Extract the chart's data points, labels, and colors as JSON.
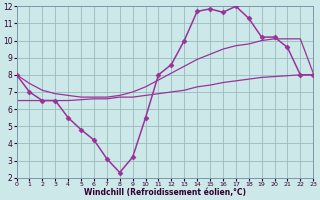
{
  "background_color": "#cce8e8",
  "grid_color": "#99bbbb",
  "line_color": "#993399",
  "xlim": [
    0,
    23
  ],
  "ylim": [
    2,
    12
  ],
  "xticks": [
    0,
    1,
    2,
    3,
    4,
    5,
    6,
    7,
    8,
    9,
    10,
    11,
    12,
    13,
    14,
    15,
    16,
    17,
    18,
    19,
    20,
    21,
    22,
    23
  ],
  "yticks": [
    2,
    3,
    4,
    5,
    6,
    7,
    8,
    9,
    10,
    11,
    12
  ],
  "xlabel": "Windchill (Refroidissement éolien,°C)",
  "series_jagged_x": [
    0,
    1,
    2,
    3,
    4,
    5,
    6,
    7,
    8,
    9,
    10,
    11,
    12,
    13,
    14,
    15,
    16,
    17,
    18,
    19,
    20,
    21,
    22,
    23
  ],
  "series_jagged_y": [
    8.0,
    7.0,
    6.5,
    6.5,
    5.5,
    4.8,
    4.2,
    3.1,
    2.3,
    3.2,
    5.5,
    8.0,
    8.6,
    10.0,
    11.7,
    11.85,
    11.65,
    12.0,
    11.3,
    10.2,
    10.2,
    9.6,
    8.0,
    8.0
  ],
  "series_upper_x": [
    0,
    1,
    2,
    3,
    4,
    5,
    6,
    7,
    8,
    9,
    10,
    11,
    12,
    13,
    14,
    15,
    16,
    17,
    18,
    19,
    20,
    21,
    22,
    23
  ],
  "series_upper_y": [
    8.0,
    7.5,
    7.1,
    6.9,
    6.8,
    6.7,
    6.7,
    6.7,
    6.8,
    7.0,
    7.3,
    7.7,
    8.1,
    8.5,
    8.9,
    9.2,
    9.5,
    9.7,
    9.8,
    10.0,
    10.1,
    10.1,
    10.1,
    8.1
  ],
  "series_lower_x": [
    0,
    1,
    2,
    3,
    4,
    5,
    6,
    7,
    8,
    9,
    10,
    11,
    12,
    13,
    14,
    15,
    16,
    17,
    18,
    19,
    20,
    21,
    22,
    23
  ],
  "series_lower_y": [
    6.5,
    6.5,
    6.5,
    6.5,
    6.5,
    6.55,
    6.6,
    6.6,
    6.7,
    6.7,
    6.8,
    6.9,
    7.0,
    7.1,
    7.3,
    7.4,
    7.55,
    7.65,
    7.75,
    7.85,
    7.9,
    7.95,
    8.0,
    8.0
  ]
}
